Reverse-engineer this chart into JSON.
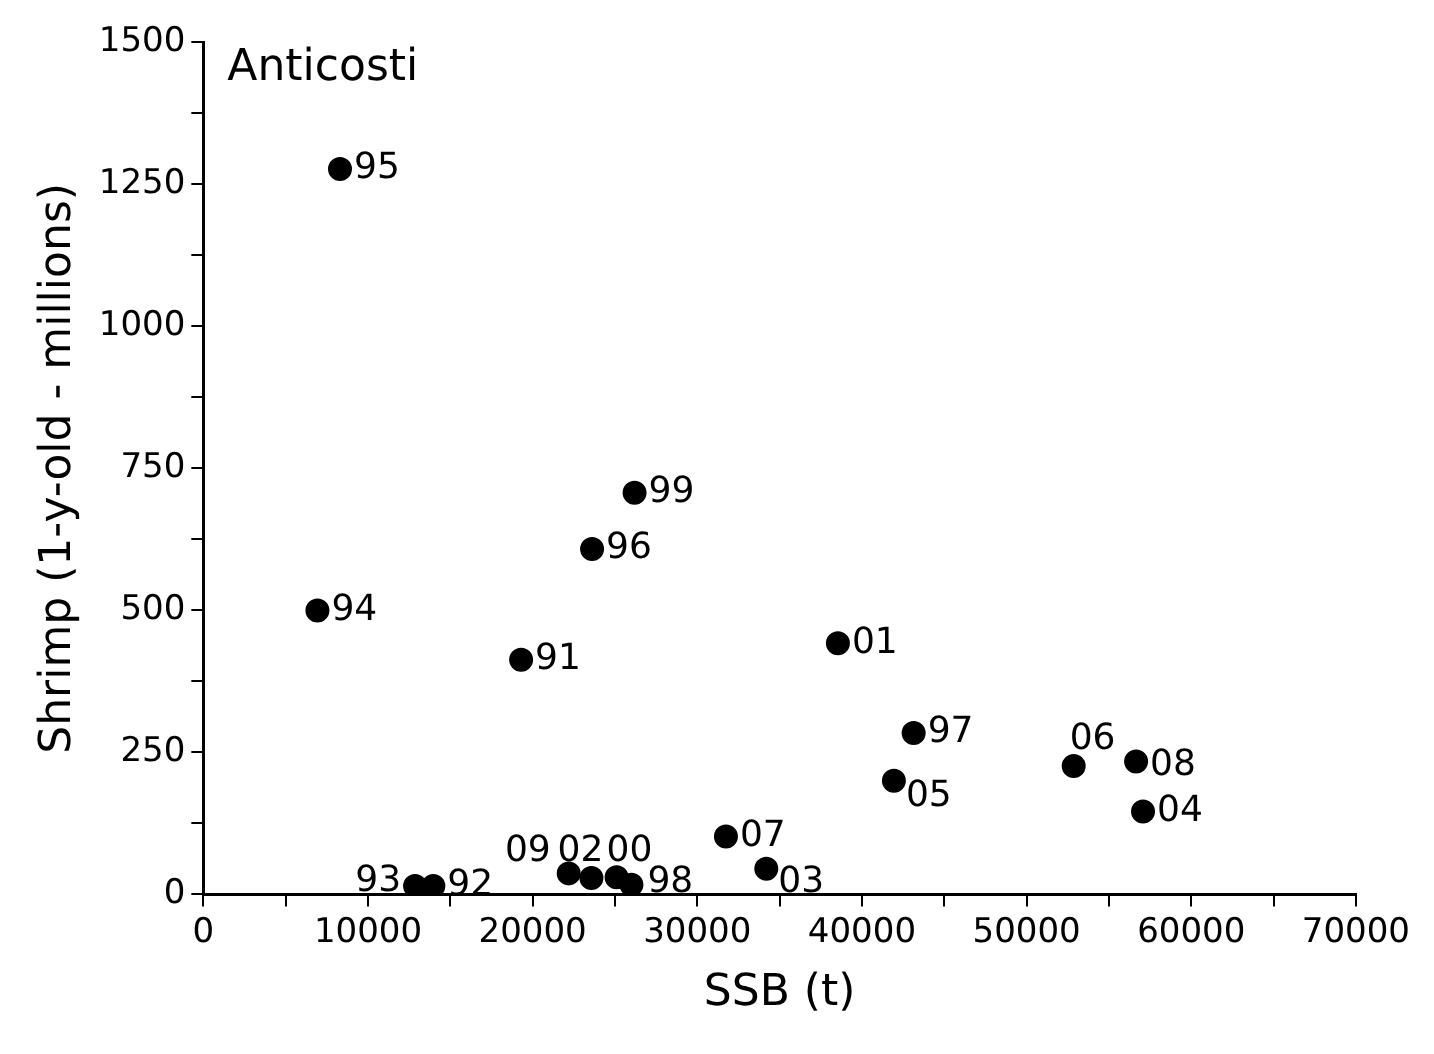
{
  "chart_data": {
    "type": "scatter",
    "title": "Anticosti",
    "xlabel": "SSB (t)",
    "ylabel": "Shrimp (1-y-old - millions)",
    "x": [
      19300,
      13970,
      12860,
      6930,
      8300,
      23610,
      43140,
      26000,
      26190,
      25100,
      38540,
      23570,
      34190,
      57070,
      41940,
      52860,
      31740,
      56650,
      22190
    ],
    "series": [
      {
        "color": "#000000",
        "values": [
          413,
          15,
          15,
          500,
          1277,
          608,
          284,
          17,
          707,
          30,
          442,
          29,
          45,
          146,
          200,
          226,
          102,
          234,
          37
        ]
      }
    ],
    "value_labels": [
      "91",
      "92",
      "93",
      "94",
      "95",
      "96",
      "97",
      "98",
      "99",
      "00",
      "01",
      "02",
      "03",
      "04",
      "05",
      "06",
      "07",
      "08",
      "09"
    ],
    "xlim": [
      0,
      70000
    ],
    "ylim": [
      0,
      1500
    ],
    "xticks": [
      0,
      {
        "value": 5000,
        "label": null
      },
      10000,
      {
        "value": 15000,
        "label": null
      },
      20000,
      {
        "value": 25000,
        "label": null
      },
      30000,
      {
        "value": 35000,
        "label": null
      },
      40000,
      {
        "value": 45000,
        "label": null
      },
      50000,
      {
        "value": 55000,
        "label": null
      },
      60000,
      {
        "value": 65000,
        "label": null
      },
      70000
    ],
    "yticks": [
      0,
      {
        "value": 125,
        "label": null
      },
      250,
      {
        "value": 375,
        "label": null
      },
      500,
      {
        "value": 625,
        "label": null
      },
      750,
      {
        "value": 875,
        "label": null
      },
      1000,
      {
        "value": 1125,
        "label": null
      },
      1250,
      {
        "value": 1375,
        "label": null
      },
      1500
    ],
    "grid": false,
    "legend": false,
    "marker": "circle"
  }
}
